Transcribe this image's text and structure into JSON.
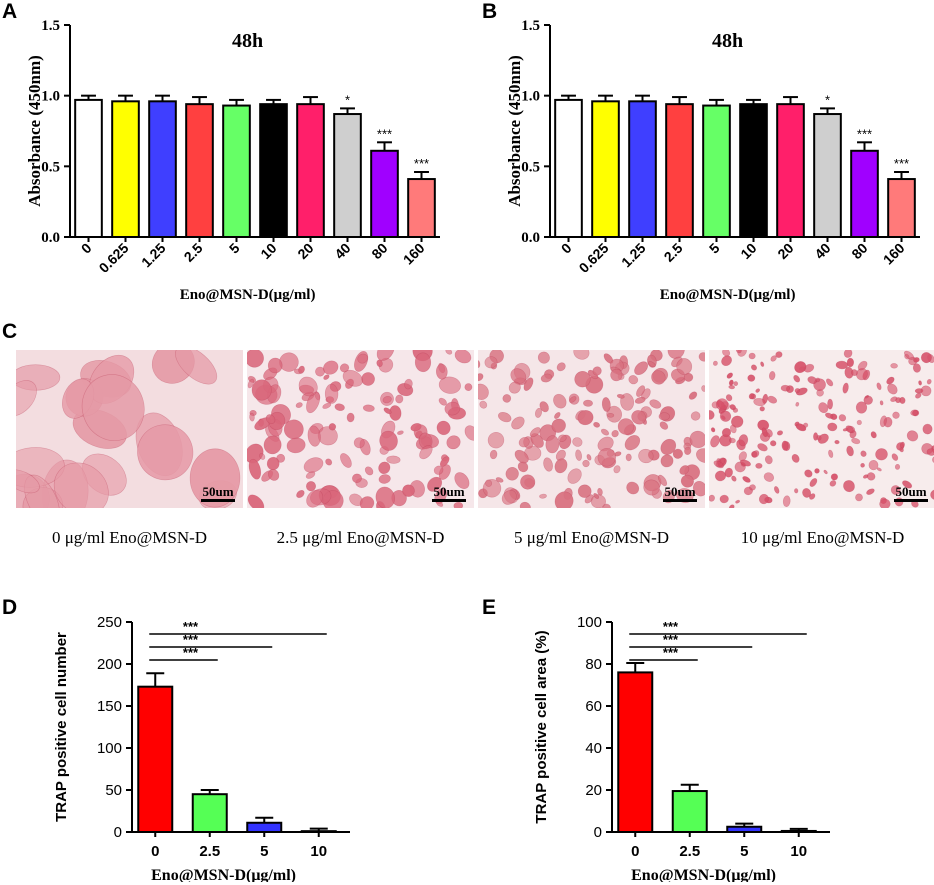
{
  "panels": {
    "A": "A",
    "B": "B",
    "C": "C",
    "D": "D",
    "E": "E"
  },
  "chart_data": [
    {
      "id": "A",
      "type": "bar",
      "title": "48h",
      "xlabel": "Eno@MSN-D(μg/ml)",
      "ylabel": "Absorbance (450nm)",
      "ylim": [
        0,
        1.5
      ],
      "yticks": [
        "0.0",
        "0.5",
        "1.0",
        "1.5"
      ],
      "categories": [
        "0",
        "0.625",
        "1.25",
        "2.5",
        "5",
        "10",
        "20",
        "40",
        "80",
        "160"
      ],
      "values": [
        0.97,
        0.96,
        0.96,
        0.94,
        0.93,
        0.94,
        0.94,
        0.87,
        0.61,
        0.41
      ],
      "errors": [
        0.03,
        0.04,
        0.04,
        0.05,
        0.04,
        0.03,
        0.05,
        0.04,
        0.06,
        0.05
      ],
      "colors": [
        "#ffffff",
        "#ffff00",
        "#3f3fff",
        "#ff4040",
        "#66ff66",
        "#000000",
        "#ff1f6a",
        "#cfcfcf",
        "#a000ff",
        "#ff7a7a"
      ],
      "significance": [
        "",
        "",
        "",
        "",
        "",
        "",
        "",
        "*",
        "***",
        "***"
      ]
    },
    {
      "id": "B",
      "type": "bar",
      "title": "48h",
      "xlabel": "Eno@MSN-D(μg/ml)",
      "ylabel": "Absorbance (450nm)",
      "ylim": [
        0,
        1.5
      ],
      "yticks": [
        "0.0",
        "0.5",
        "1.0",
        "1.5"
      ],
      "categories": [
        "0",
        "0.625",
        "1.25",
        "2.5",
        "5",
        "10",
        "20",
        "40",
        "80",
        "160"
      ],
      "values": [
        0.97,
        0.96,
        0.96,
        0.94,
        0.93,
        0.94,
        0.94,
        0.87,
        0.61,
        0.41
      ],
      "errors": [
        0.03,
        0.04,
        0.04,
        0.05,
        0.04,
        0.03,
        0.05,
        0.04,
        0.06,
        0.05
      ],
      "colors": [
        "#ffffff",
        "#ffff00",
        "#3f3fff",
        "#ff4040",
        "#66ff66",
        "#000000",
        "#ff1f6a",
        "#cfcfcf",
        "#a000ff",
        "#ff7a7a"
      ],
      "significance": [
        "",
        "",
        "",
        "",
        "",
        "",
        "",
        "*",
        "***",
        "***"
      ]
    },
    {
      "id": "D",
      "type": "bar",
      "title": "",
      "xlabel": "Eno@MSN-D(μg/ml)",
      "ylabel": "TRAP positive cell number",
      "ylim": [
        0,
        250
      ],
      "yticks": [
        "0",
        "50",
        "100",
        "150",
        "200",
        "250"
      ],
      "categories": [
        "0",
        "2.5",
        "5",
        "10"
      ],
      "values": [
        173,
        45,
        11,
        1
      ],
      "errors": [
        16,
        5,
        6,
        3
      ],
      "colors": [
        "#ff0000",
        "#55ff55",
        "#3333ff",
        "#ffffff"
      ],
      "comparisons": [
        {
          "from": 0,
          "to": 1,
          "label": "***"
        },
        {
          "from": 0,
          "to": 2,
          "label": "***"
        },
        {
          "from": 0,
          "to": 3,
          "label": "***"
        }
      ]
    },
    {
      "id": "E",
      "type": "bar",
      "title": "",
      "xlabel": "Eno@MSN-D(μg/ml)",
      "ylabel": "TRAP positive cell area (%)",
      "ylim": [
        0,
        100
      ],
      "yticks": [
        "0",
        "20",
        "40",
        "60",
        "80",
        "100"
      ],
      "categories": [
        "0",
        "2.5",
        "5",
        "10"
      ],
      "values": [
        76,
        19.5,
        2.5,
        0.5
      ],
      "errors": [
        4.5,
        3,
        1.5,
        1
      ],
      "colors": [
        "#ff0000",
        "#55ff55",
        "#3333ff",
        "#ffffff"
      ],
      "comparisons": [
        {
          "from": 0,
          "to": 1,
          "label": "***"
        },
        {
          "from": 0,
          "to": 2,
          "label": "***"
        },
        {
          "from": 0,
          "to": 3,
          "label": "***"
        }
      ]
    }
  ],
  "micrographs": [
    {
      "caption": "0 μg/ml Eno@MSN-D",
      "scale": "50um",
      "density": "large"
    },
    {
      "caption": "2.5 μg/ml Eno@MSN-D",
      "scale": "50um",
      "density": "medium"
    },
    {
      "caption": "5 μg/ml Eno@MSN-D",
      "scale": "50um",
      "density": "medium-small"
    },
    {
      "caption": "10 μg/ml Eno@MSN-D",
      "scale": "50um",
      "density": "small"
    }
  ]
}
